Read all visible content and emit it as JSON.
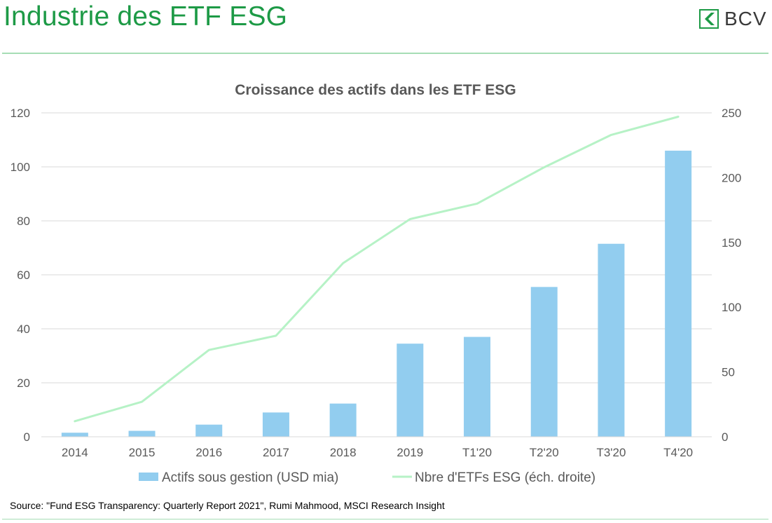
{
  "header": {
    "title": "Industrie des ETF ESG",
    "logo_text": "BCV"
  },
  "colors": {
    "brand_green": "#1d9a46",
    "bar": "#92cdef",
    "line": "#b6f2c6"
  },
  "chart_data": {
    "type": "bar",
    "title": "Croissance des actifs dans les ETF ESG",
    "categories": [
      "2014",
      "2015",
      "2016",
      "2017",
      "2018",
      "2019",
      "T1'20",
      "T2'20",
      "T3'20",
      "T4'20"
    ],
    "series": [
      {
        "name": "Actifs sous gestion (USD mia)",
        "type": "bar",
        "axis": "left",
        "values": [
          1.5,
          2.2,
          4.5,
          9,
          12.3,
          34.5,
          37,
          55.5,
          71.5,
          106
        ]
      },
      {
        "name": "Nbre d'ETFs ESG (éch. droite)",
        "type": "line",
        "axis": "right",
        "values": [
          12,
          27,
          67,
          78,
          134,
          168,
          180,
          208,
          233,
          247
        ]
      }
    ],
    "y_left": {
      "ylim": [
        0,
        120
      ],
      "ticks": [
        "0",
        "20",
        "40",
        "60",
        "80",
        "100",
        "120"
      ]
    },
    "y_right": {
      "ylim": [
        0,
        250
      ],
      "ticks": [
        "0",
        "50",
        "100",
        "150",
        "200",
        "250"
      ]
    },
    "grid": true,
    "legend": "bottom"
  },
  "footer": {
    "source": "Source: \"Fund ESG Transparency: Quarterly Report 2021\", Rumi Mahmood, MSCI Research Insight"
  }
}
